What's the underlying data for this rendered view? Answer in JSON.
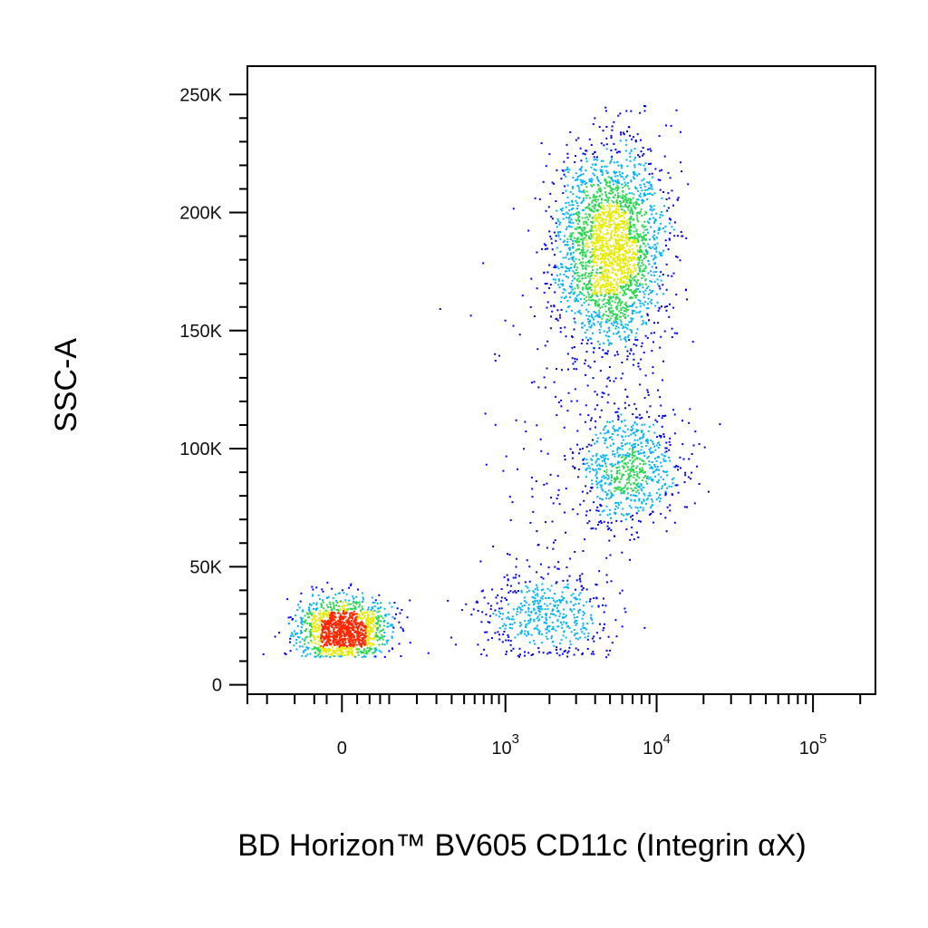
{
  "chart_data": {
    "type": "scatter",
    "title": "",
    "xlabel": "BD Horizon™ BV605 CD11c (Integrin αX)",
    "ylabel": "SSC-A",
    "x_scale": "biexponential",
    "xlim": [
      -300,
      250000
    ],
    "ylim": [
      -4000,
      262000
    ],
    "x_ticks": [
      {
        "value": 0,
        "base": "0",
        "exp": ""
      },
      {
        "value": 1000,
        "base": "10",
        "exp": "3"
      },
      {
        "value": 10000,
        "base": "10",
        "exp": "4"
      },
      {
        "value": 100000,
        "base": "10",
        "exp": "5"
      }
    ],
    "y_ticks": [
      {
        "value": 0,
        "label": "0"
      },
      {
        "value": 50000,
        "label": "50K"
      },
      {
        "value": 100000,
        "label": "100K"
      },
      {
        "value": 150000,
        "label": "150K"
      },
      {
        "value": 200000,
        "label": "200K"
      },
      {
        "value": 250000,
        "label": "250K"
      }
    ],
    "grid": false,
    "legend": "none",
    "color_map": "density (blue → cyan → green → yellow → red)",
    "colors": {
      "low": "#0000ff",
      "mid_low": "#00b4ff",
      "mid": "#28d750",
      "mid_high": "#e6eb00",
      "high": "#ff2800"
    },
    "populations": [
      {
        "x_center": 0,
        "x_spread": 40,
        "y_center": 24000,
        "y_spread": 6500,
        "share": 0.26
      },
      {
        "x_center": 5000,
        "x_spread": 2500,
        "y_center": 185000,
        "y_spread": 22000,
        "share": 0.47
      },
      {
        "x_center": 6800,
        "x_spread": 3000,
        "y_center": 92000,
        "y_spread": 13000,
        "share": 0.14
      },
      {
        "x_center": 1800,
        "x_spread": 1200,
        "y_center": 30000,
        "y_spread": 9000,
        "share": 0.09
      },
      {
        "x_center": 3000,
        "x_spread": 3000,
        "y_center": 90000,
        "y_spread": 50000,
        "share": 0.04
      }
    ]
  }
}
